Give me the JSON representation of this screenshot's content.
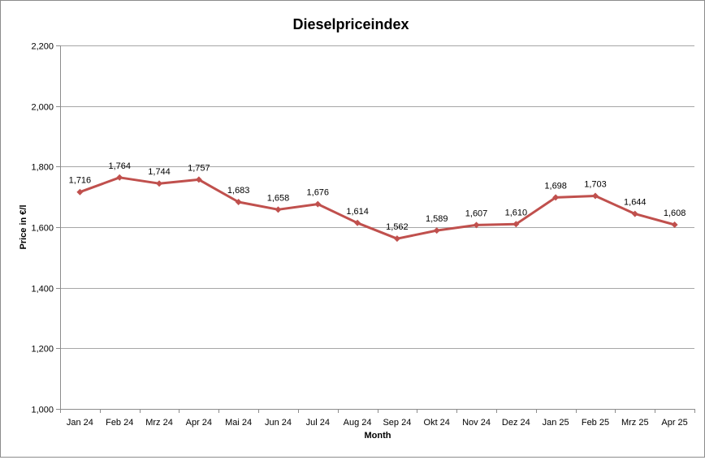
{
  "chart_data": {
    "type": "line",
    "title": "Dieselpriceindex",
    "xlabel": "Month",
    "ylabel": "Price in €/l",
    "categories": [
      "Jan 24",
      "Feb 24",
      "Mrz 24",
      "Apr 24",
      "Mai 24",
      "Jun 24",
      "Jul 24",
      "Aug 24",
      "Sep 24",
      "Okt 24",
      "Nov 24",
      "Dez 24",
      "Jan 25",
      "Feb 25",
      "Mrz 25",
      "Apr 25"
    ],
    "series": [
      {
        "values": [
          1.716,
          1.764,
          1.744,
          1.757,
          1.683,
          1.658,
          1.676,
          1.614,
          1.562,
          1.589,
          1.607,
          1.61,
          1.698,
          1.703,
          1.644,
          1.608
        ],
        "labels": [
          "1,716",
          "1,764",
          "1,744",
          "1,757",
          "1,683",
          "1,658",
          "1,676",
          "1,614",
          "1,562",
          "1,589",
          "1,607",
          "1,610",
          "1,698",
          "1,703",
          "1,644",
          "1,608"
        ],
        "color": "#c0504d"
      }
    ],
    "ylim": [
      1.0,
      2.2
    ],
    "yticks": [
      1.0,
      1.2,
      1.4,
      1.6,
      1.8,
      2.0,
      2.2
    ],
    "ytick_labels": [
      "1,000",
      "1,200",
      "1,400",
      "1,600",
      "1,800",
      "2,000",
      "2,200"
    ],
    "grid": true,
    "legend": "none"
  }
}
